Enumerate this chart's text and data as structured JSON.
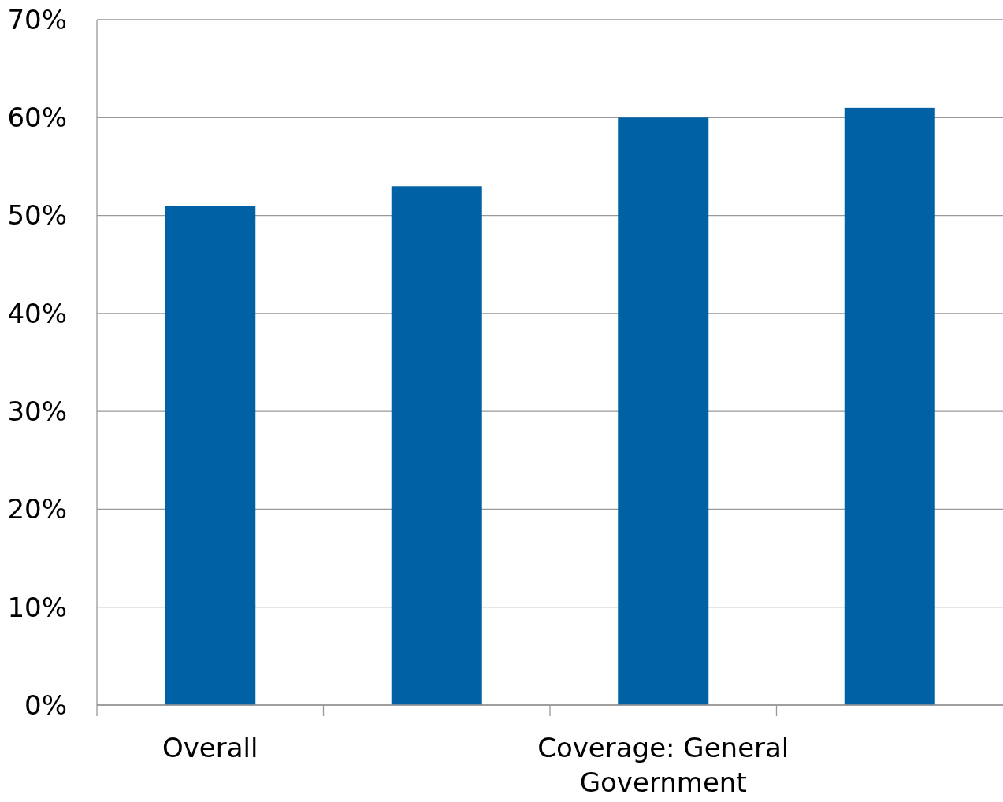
{
  "chart_data": {
    "type": "bar",
    "categories": [
      "Overall",
      null,
      "Coverage: General Government",
      null
    ],
    "values": [
      51,
      53,
      60,
      61
    ],
    "color": "#0062a4",
    "ylim": [
      0,
      70
    ],
    "yticks": [
      {
        "value": 0,
        "label": "0%"
      },
      {
        "value": 10,
        "label": "10%"
      },
      {
        "value": 20,
        "label": "20%"
      },
      {
        "value": 30,
        "label": "30%"
      },
      {
        "value": 40,
        "label": "40%"
      },
      {
        "value": 50,
        "label": "50%"
      },
      {
        "value": 60,
        "label": "60%"
      },
      {
        "value": 70,
        "label": "70%"
      }
    ],
    "grid": "y"
  }
}
